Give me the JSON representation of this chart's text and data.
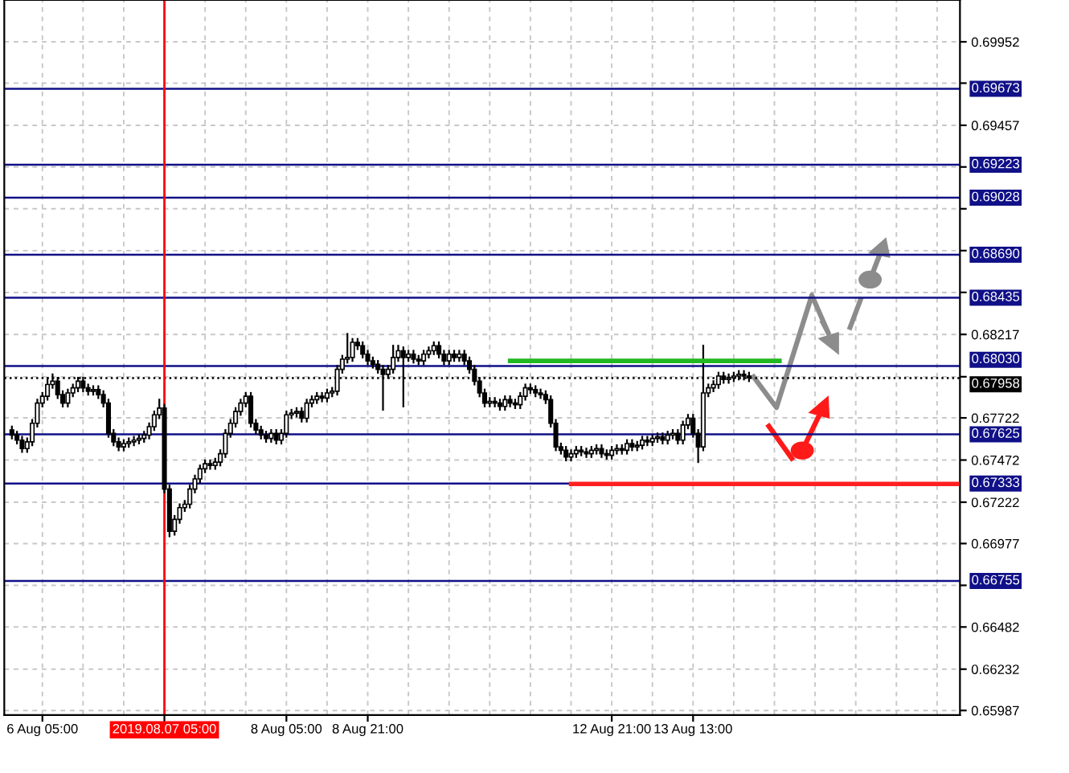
{
  "chart_data": {
    "type": "candlestick",
    "categories": [
      null,
      null,
      null,
      null,
      null,
      null,
      null,
      "6 Aug 05:00",
      null,
      null,
      null,
      null,
      null,
      null,
      null,
      null,
      null,
      null,
      null,
      null,
      null,
      null,
      null,
      null,
      null,
      null,
      null,
      null,
      null,
      null,
      null,
      "2019.08.07 05:00",
      null,
      null,
      null,
      null,
      null,
      null,
      null,
      null,
      null,
      null,
      null,
      null,
      null,
      null,
      null,
      null,
      null,
      null,
      null,
      null,
      null,
      null,
      null,
      "8 Aug 05:00",
      null,
      null,
      null,
      null,
      null,
      null,
      null,
      null,
      null,
      null,
      null,
      null,
      null,
      null,
      null,
      "8 Aug 21:00",
      null,
      null,
      null,
      null,
      null,
      null,
      null,
      null,
      null,
      null,
      null,
      null,
      null,
      null,
      null,
      null,
      null,
      null,
      null,
      null,
      null,
      null,
      null,
      null,
      null,
      null,
      null,
      null,
      null,
      null,
      null,
      null,
      null,
      null,
      null,
      null,
      null,
      null,
      null,
      null,
      null,
      null,
      null,
      null,
      null,
      null,
      null,
      "12 Aug 21:00",
      null,
      null,
      null,
      null,
      null,
      null,
      null,
      null,
      null,
      null,
      null,
      null,
      null,
      null,
      null,
      "13 Aug 13:00",
      null,
      null,
      null,
      null,
      null,
      null,
      null,
      null,
      null,
      null,
      null,
      null,
      null,
      null,
      null,
      null,
      null,
      null,
      null,
      null,
      null,
      null,
      null,
      null,
      null,
      null,
      null,
      null,
      null,
      null,
      null,
      null,
      null,
      null,
      null,
      null,
      null,
      null,
      null,
      null,
      null,
      null,
      null,
      null,
      null,
      null,
      null,
      null,
      null,
      null,
      null,
      null
    ],
    "ohlc": [
      null,
      [
        0.6765,
        0.6767,
        0.676,
        0.6762
      ],
      [
        0.6762,
        0.6764,
        0.6757,
        0.6759
      ],
      [
        0.6759,
        0.6761,
        0.6752,
        0.6754
      ],
      [
        0.6754,
        0.676,
        0.6752,
        0.6758
      ],
      [
        0.6758,
        0.6771,
        0.6756,
        0.6769
      ],
      [
        0.6769,
        0.6783,
        0.6767,
        0.6781
      ],
      [
        0.6781,
        0.6787,
        0.6779,
        0.6785
      ],
      [
        0.6785,
        0.6796,
        0.6783,
        0.6792
      ],
      [
        0.6792,
        0.6798,
        0.679,
        0.6794
      ],
      [
        0.6794,
        0.6796,
        0.6784,
        0.6786
      ],
      [
        0.6786,
        0.6788,
        0.6779,
        0.6781
      ],
      [
        0.6781,
        0.6789,
        0.6779,
        0.6787
      ],
      [
        0.6787,
        0.6792,
        0.6785,
        0.679
      ],
      [
        0.679,
        0.6796,
        0.6788,
        0.6794
      ],
      [
        0.6794,
        0.6796,
        0.6788,
        0.679
      ],
      [
        0.679,
        0.6792,
        0.6786,
        0.6788
      ],
      [
        0.6788,
        0.6791,
        0.6786,
        0.6789
      ],
      [
        0.6789,
        0.6791,
        0.6784,
        0.6786
      ],
      [
        0.6786,
        0.6788,
        0.6779,
        0.6781
      ],
      [
        0.6781,
        0.6783,
        0.6761,
        0.6763
      ],
      [
        0.6763,
        0.6765,
        0.6756,
        0.6758
      ],
      [
        0.6758,
        0.676,
        0.6753,
        0.6755
      ],
      [
        0.6755,
        0.6759,
        0.6753,
        0.6757
      ],
      [
        0.6757,
        0.676,
        0.6755,
        0.6758
      ],
      [
        0.6758,
        0.6761,
        0.6756,
        0.6759
      ],
      [
        0.6759,
        0.6762,
        0.6757,
        0.676
      ],
      [
        0.676,
        0.6764,
        0.6758,
        0.6762
      ],
      [
        0.6762,
        0.6769,
        0.676,
        0.6767
      ],
      [
        0.6767,
        0.6776,
        0.6765,
        0.6774
      ],
      [
        0.6774,
        0.6783,
        0.6772,
        0.6778
      ],
      [
        0.6778,
        0.678,
        0.6728,
        0.673
      ],
      [
        0.673,
        0.6732,
        0.6702,
        0.6705
      ],
      [
        0.6705,
        0.6714,
        0.6703,
        0.6712
      ],
      [
        0.6712,
        0.6721,
        0.671,
        0.6719
      ],
      [
        0.6719,
        0.6723,
        0.6717,
        0.6721
      ],
      [
        0.6721,
        0.6732,
        0.6719,
        0.673
      ],
      [
        0.673,
        0.6738,
        0.6728,
        0.6736
      ],
      [
        0.6736,
        0.6744,
        0.6734,
        0.6742
      ],
      [
        0.6742,
        0.6747,
        0.674,
        0.6745
      ],
      [
        0.6745,
        0.6747,
        0.6742,
        0.6744
      ],
      [
        0.6744,
        0.6748,
        0.6742,
        0.6746
      ],
      [
        0.6746,
        0.6753,
        0.6744,
        0.6751
      ],
      [
        0.6751,
        0.6765,
        0.6749,
        0.6763
      ],
      [
        0.6763,
        0.6771,
        0.6761,
        0.6769
      ],
      [
        0.6769,
        0.6778,
        0.6767,
        0.6776
      ],
      [
        0.6776,
        0.6783,
        0.6774,
        0.6781
      ],
      [
        0.6781,
        0.6787,
        0.6779,
        0.6785
      ],
      [
        0.6785,
        0.6787,
        0.6767,
        0.6769
      ],
      [
        0.6769,
        0.6771,
        0.6763,
        0.6765
      ],
      [
        0.6765,
        0.6767,
        0.676,
        0.6762
      ],
      [
        0.6762,
        0.6764,
        0.6758,
        0.676
      ],
      [
        0.676,
        0.6765,
        0.6758,
        0.6763
      ],
      [
        0.6763,
        0.6765,
        0.6757,
        0.6759
      ],
      [
        0.6759,
        0.6765,
        0.6757,
        0.6763
      ],
      [
        0.6763,
        0.6776,
        0.6761,
        0.6774
      ],
      [
        0.6774,
        0.6777,
        0.6772,
        0.6775
      ],
      [
        0.6775,
        0.6778,
        0.6773,
        0.6776
      ],
      [
        0.6776,
        0.6778,
        0.677,
        0.6772
      ],
      [
        0.6772,
        0.6783,
        0.677,
        0.6781
      ],
      [
        0.6781,
        0.6785,
        0.6779,
        0.6783
      ],
      [
        0.6783,
        0.6787,
        0.6781,
        0.6785
      ],
      [
        0.6785,
        0.6787,
        0.6782,
        0.6784
      ],
      [
        0.6784,
        0.6789,
        0.6782,
        0.6787
      ],
      [
        0.6787,
        0.679,
        0.6785,
        0.6788
      ],
      [
        0.6788,
        0.6803,
        0.6786,
        0.6801
      ],
      [
        0.6801,
        0.6809,
        0.6799,
        0.6807
      ],
      [
        0.6807,
        0.6822,
        0.6805,
        0.6808
      ],
      [
        0.6808,
        0.6819,
        0.6806,
        0.6817
      ],
      [
        0.6817,
        0.6819,
        0.6813,
        0.6815
      ],
      [
        0.6815,
        0.6817,
        0.6808,
        0.681
      ],
      [
        0.681,
        0.6812,
        0.6804,
        0.6806
      ],
      [
        0.6806,
        0.6808,
        0.6802,
        0.6804
      ],
      [
        0.6804,
        0.6806,
        0.6799,
        0.6801
      ],
      [
        0.6801,
        0.6803,
        0.6777,
        0.6798
      ],
      [
        0.6798,
        0.6803,
        0.6796,
        0.6801
      ],
      [
        0.6801,
        0.6815,
        0.6799,
        0.6808
      ],
      [
        0.6808,
        0.6815,
        0.6806,
        0.6812
      ],
      [
        0.6812,
        0.6814,
        0.6779,
        0.6808
      ],
      [
        0.6808,
        0.6812,
        0.6806,
        0.681
      ],
      [
        0.681,
        0.6812,
        0.6805,
        0.6807
      ],
      [
        0.6807,
        0.6809,
        0.6804,
        0.6806
      ],
      [
        0.6806,
        0.6812,
        0.6804,
        0.681
      ],
      [
        0.681,
        0.6814,
        0.6808,
        0.6812
      ],
      [
        0.6812,
        0.6817,
        0.681,
        0.6815
      ],
      [
        0.6815,
        0.6817,
        0.6808,
        0.681
      ],
      [
        0.681,
        0.6812,
        0.6804,
        0.6806
      ],
      [
        0.6806,
        0.6812,
        0.6804,
        0.681
      ],
      [
        0.681,
        0.6812,
        0.6806,
        0.6808
      ],
      [
        0.6808,
        0.6812,
        0.6806,
        0.681
      ],
      [
        0.681,
        0.6812,
        0.6804,
        0.6806
      ],
      [
        0.6806,
        0.6808,
        0.6799,
        0.6801
      ],
      [
        0.6801,
        0.6803,
        0.6792,
        0.6794
      ],
      [
        0.6794,
        0.6796,
        0.6785,
        0.6787
      ],
      [
        0.6787,
        0.6789,
        0.6779,
        0.6781
      ],
      [
        0.6781,
        0.6784,
        0.6779,
        0.6782
      ],
      [
        0.6782,
        0.6784,
        0.6779,
        0.6781
      ],
      [
        0.6781,
        0.6783,
        0.6777,
        0.6779
      ],
      [
        0.6779,
        0.6785,
        0.6777,
        0.6783
      ],
      [
        0.6783,
        0.6785,
        0.6779,
        0.6781
      ],
      [
        0.6781,
        0.6783,
        0.6778,
        0.678
      ],
      [
        0.678,
        0.6787,
        0.6778,
        0.6785
      ],
      [
        0.6785,
        0.6792,
        0.6783,
        0.679
      ],
      [
        0.679,
        0.6792,
        0.6787,
        0.6789
      ],
      [
        0.6789,
        0.6791,
        0.6785,
        0.6787
      ],
      [
        0.6787,
        0.6789,
        0.6784,
        0.6786
      ],
      [
        0.6786,
        0.6788,
        0.6781,
        0.6783
      ],
      [
        0.6783,
        0.6785,
        0.6767,
        0.6769
      ],
      [
        0.6769,
        0.6771,
        0.6753,
        0.6755
      ],
      [
        0.6755,
        0.6757,
        0.6751,
        0.6753
      ],
      [
        0.6753,
        0.6755,
        0.6747,
        0.6749
      ],
      [
        0.6749,
        0.6753,
        0.6747,
        0.6751
      ],
      [
        0.6751,
        0.6755,
        0.6749,
        0.6753
      ],
      [
        0.6753,
        0.6755,
        0.675,
        0.6752
      ],
      [
        0.6752,
        0.6754,
        0.6749,
        0.6751
      ],
      [
        0.6751,
        0.6755,
        0.6749,
        0.6753
      ],
      [
        0.6753,
        0.6756,
        0.6751,
        0.6754
      ],
      [
        0.6754,
        0.6756,
        0.6749,
        0.6751
      ],
      [
        0.6751,
        0.6753,
        0.6748,
        0.675
      ],
      [
        0.675,
        0.6755,
        0.6748,
        0.6753
      ],
      [
        0.6753,
        0.6756,
        0.6751,
        0.6754
      ],
      [
        0.6754,
        0.6756,
        0.6751,
        0.6753
      ],
      [
        0.6753,
        0.6759,
        0.6751,
        0.6757
      ],
      [
        0.6757,
        0.6759,
        0.6753,
        0.6755
      ],
      [
        0.6755,
        0.6758,
        0.6753,
        0.6756
      ],
      [
        0.6756,
        0.6761,
        0.6754,
        0.6759
      ],
      [
        0.6759,
        0.6761,
        0.6756,
        0.6758
      ],
      [
        0.6758,
        0.6762,
        0.6756,
        0.676
      ],
      [
        0.676,
        0.6763,
        0.6758,
        0.6761
      ],
      [
        0.6761,
        0.6763,
        0.6757,
        0.6759
      ],
      [
        0.6759,
        0.6764,
        0.6757,
        0.6762
      ],
      [
        0.6762,
        0.6765,
        0.676,
        0.6763
      ],
      [
        0.6763,
        0.6765,
        0.6757,
        0.6759
      ],
      [
        0.6759,
        0.677,
        0.6757,
        0.6768
      ],
      [
        0.6768,
        0.6774,
        0.6766,
        0.6772
      ],
      [
        0.6772,
        0.6774,
        0.6761,
        0.6763
      ],
      [
        0.6763,
        0.6765,
        0.6746,
        0.6755
      ],
      [
        0.6755,
        0.6815,
        0.6753,
        0.6787
      ],
      [
        0.6787,
        0.6792,
        0.6785,
        0.679
      ],
      [
        0.679,
        0.6794,
        0.6788,
        0.6792
      ],
      [
        0.6792,
        0.6799,
        0.679,
        0.6797
      ],
      [
        0.6797,
        0.6799,
        0.6793,
        0.6795
      ],
      [
        0.6795,
        0.6798,
        0.6793,
        0.6796
      ],
      [
        0.6796,
        0.6799,
        0.6794,
        0.6797
      ],
      [
        0.6797,
        0.68,
        0.6795,
        0.6798
      ],
      [
        0.6798,
        0.68,
        0.6795,
        0.6797
      ],
      [
        0.6797,
        0.6799,
        0.6794,
        0.6796
      ],
      null,
      null,
      null,
      null,
      null,
      null,
      null,
      null,
      null,
      null,
      null,
      null,
      null,
      null,
      null,
      null,
      null,
      null,
      null,
      null,
      null,
      null,
      null,
      null,
      null,
      null,
      null,
      null,
      null,
      null,
      null,
      null,
      null,
      null,
      null,
      null,
      null,
      null,
      null,
      null,
      null
    ],
    "series": [
      {
        "type": "line",
        "color": "#22b822",
        "values": [
          null,
          null,
          null,
          null,
          null,
          null,
          null,
          null,
          null,
          null,
          null,
          null,
          null,
          null,
          null,
          null,
          null,
          null,
          null,
          null,
          null,
          null,
          null,
          null,
          null,
          null,
          null,
          null,
          null,
          null,
          null,
          null,
          null,
          null,
          null,
          null,
          null,
          null,
          null,
          null,
          null,
          null,
          null,
          null,
          null,
          null,
          null,
          null,
          null,
          null,
          null,
          null,
          null,
          null,
          null,
          null,
          null,
          null,
          null,
          null,
          null,
          null,
          null,
          null,
          null,
          null,
          null,
          null,
          null,
          null,
          null,
          null,
          null,
          null,
          null,
          null,
          null,
          null,
          null,
          null,
          null,
          null,
          null,
          null,
          null,
          null,
          null,
          null,
          null,
          null,
          null,
          null,
          null,
          null,
          null,
          null,
          null,
          null,
          null,
          0.6806,
          0.6806,
          0.6806,
          0.6806,
          0.6806,
          0.6806,
          0.6806,
          0.6806,
          0.6806,
          0.6806,
          0.6806,
          0.6806,
          0.6806,
          0.6806,
          0.6806,
          0.6806,
          0.6806,
          0.6806,
          0.6806,
          0.6806,
          0.6806,
          0.6806,
          0.6806,
          0.6806,
          0.6806,
          0.6806,
          0.6806,
          0.6806,
          0.6806,
          0.6806,
          0.6806,
          0.6806,
          0.6806,
          0.6806,
          0.6806,
          0.6806,
          0.6806,
          0.6806,
          0.6806,
          0.6806,
          0.6806,
          0.6806,
          0.6806,
          0.6806,
          0.6806,
          0.6806,
          0.6806,
          0.6806,
          0.6806,
          0.6806,
          0.6806,
          0.6806,
          0.6806,
          0.6806,
          null,
          null,
          null,
          null,
          null,
          null,
          null,
          null,
          null,
          null,
          null,
          null,
          null,
          null,
          null,
          null,
          null,
          null,
          null,
          null,
          null,
          null,
          null,
          null,
          null,
          null,
          null,
          null,
          null,
          null,
          null,
          null,
          null,
          null,
          null
        ]
      },
      {
        "type": "line",
        "color": "#ff2020",
        "values": [
          null,
          null,
          null,
          null,
          null,
          null,
          null,
          null,
          null,
          null,
          null,
          null,
          null,
          null,
          null,
          null,
          null,
          null,
          null,
          null,
          null,
          null,
          null,
          null,
          null,
          null,
          null,
          null,
          null,
          null,
          null,
          null,
          null,
          null,
          null,
          null,
          null,
          null,
          null,
          null,
          null,
          null,
          null,
          null,
          null,
          null,
          null,
          null,
          null,
          null,
          null,
          null,
          null,
          null,
          null,
          null,
          null,
          null,
          null,
          null,
          null,
          null,
          null,
          null,
          null,
          null,
          null,
          null,
          null,
          null,
          null,
          null,
          null,
          null,
          null,
          null,
          null,
          null,
          null,
          null,
          null,
          null,
          null,
          null,
          null,
          null,
          null,
          null,
          null,
          null,
          null,
          null,
          null,
          null,
          null,
          null,
          null,
          null,
          null,
          null,
          null,
          null,
          null,
          null,
          null,
          null,
          null,
          null,
          null,
          null,
          null,
          0.6733,
          0.6733,
          0.6733,
          0.6733,
          0.6733,
          0.6733,
          0.6733,
          0.6733,
          0.6733,
          0.6733,
          0.6733,
          0.6733,
          0.6733,
          0.6733,
          0.6733,
          0.6733,
          0.6733,
          0.6733,
          0.6733,
          0.6733,
          0.6733,
          0.6733,
          0.6733,
          0.6733,
          0.6733,
          0.6733,
          0.6733,
          0.6733,
          0.6733,
          0.6733,
          0.6733,
          0.6733,
          0.6733,
          0.6733,
          0.6733,
          0.6733,
          0.6733,
          0.6733,
          0.6733,
          0.6733,
          0.6733,
          0.6733,
          0.6733,
          0.6733,
          0.6733,
          0.6733,
          0.6733,
          0.6733,
          0.6733,
          0.6733,
          0.6733,
          0.6733,
          0.6733,
          0.6733,
          0.6733,
          0.6733,
          0.6733,
          0.6733,
          0.6733,
          0.6733,
          0.6733,
          0.6733,
          0.6733,
          0.6733,
          0.6733,
          0.6733,
          0.6733,
          0.6733,
          0.6733,
          0.6733,
          0.6733,
          0.6733,
          0.6733,
          0.6733,
          0.6733,
          0.6733,
          0.6733
        ]
      }
    ],
    "ylim": [
      0.6596,
      0.702
    ],
    "yticks": [
      {
        "value": 0.69952,
        "label": "0.69952"
      },
      {
        "value": 0.69707,
        "label": null
      },
      {
        "value": 0.69457,
        "label": "0.69457"
      },
      {
        "value": 0.6921,
        "label": null
      },
      {
        "value": 0.68962,
        "label": null
      },
      {
        "value": 0.68714,
        "label": null
      },
      {
        "value": 0.68466,
        "label": null
      },
      {
        "value": 0.68217,
        "label": "0.68217"
      },
      {
        "value": 0.67966,
        "label": null
      },
      {
        "value": 0.67722,
        "label": "0.67722"
      },
      {
        "value": 0.67472,
        "label": "0.67472"
      },
      {
        "value": 0.67222,
        "label": "0.67222"
      },
      {
        "value": 0.66977,
        "label": "0.66977"
      },
      {
        "value": 0.66729,
        "label": null
      },
      {
        "value": 0.66482,
        "label": "0.66482"
      },
      {
        "value": 0.66232,
        "label": "0.66232"
      },
      {
        "value": 0.65987,
        "label": "0.65987"
      }
    ],
    "ref_lines": [
      {
        "axis": "y",
        "value": 0.69673,
        "label": "0.69673",
        "color": "#101088"
      },
      {
        "axis": "y",
        "value": 0.69223,
        "label": "0.69223",
        "color": "#101088"
      },
      {
        "axis": "y",
        "value": 0.69028,
        "label": "0.69028",
        "color": "#101088"
      },
      {
        "axis": "y",
        "value": 0.6869,
        "label": "0.68690",
        "color": "#101088"
      },
      {
        "axis": "y",
        "value": 0.68435,
        "label": "0.68435",
        "color": "#101088"
      },
      {
        "axis": "y",
        "value": 0.6803,
        "label": "0.68030",
        "color": "#101088"
      },
      {
        "axis": "y",
        "value": 0.67958,
        "label": "0.67958",
        "color": "#000000",
        "line_style": "dotted"
      },
      {
        "axis": "y",
        "value": 0.67625,
        "label": "0.67625",
        "color": "#101088"
      },
      {
        "axis": "y",
        "value": 0.67333,
        "label": "0.67333",
        "color": "#101088"
      },
      {
        "axis": "y",
        "value": 0.66755,
        "label": "0.66755",
        "color": "#101088"
      },
      {
        "axis": "x",
        "value": "2019.08.07 05:00",
        "color": "#ff0000"
      }
    ],
    "grid": true
  }
}
